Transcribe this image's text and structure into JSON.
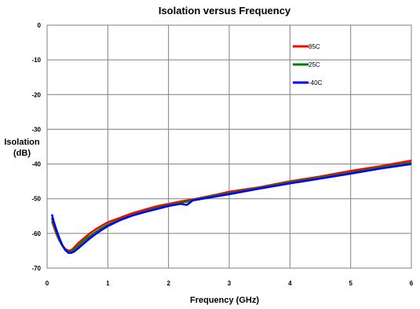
{
  "chart_data": {
    "type": "line",
    "title": "Isolation versus Frequency",
    "xlabel": "Frequency (GHz)",
    "ylabel_lines": [
      "Isolation",
      "(dB)"
    ],
    "xlim": [
      0,
      6
    ],
    "ylim": [
      -70,
      0
    ],
    "xticks": [
      0,
      1,
      2,
      3,
      4,
      5,
      6
    ],
    "yticks": [
      0,
      -10,
      -20,
      -30,
      -40,
      -50,
      -60,
      -70
    ],
    "grid": true,
    "legend_position": "top-right",
    "series": [
      {
        "name": "85C",
        "color": "#ff0000",
        "x": [
          0.08,
          0.1,
          0.15,
          0.2,
          0.25,
          0.3,
          0.35,
          0.4,
          0.45,
          0.5,
          0.6,
          0.7,
          0.8,
          0.9,
          1.0,
          1.2,
          1.4,
          1.6,
          1.8,
          2.0,
          2.2,
          2.3,
          2.4,
          2.6,
          2.8,
          3.0,
          3.5,
          4.0,
          4.5,
          5.0,
          5.5,
          6.0
        ],
        "y": [
          -56.5,
          -57.5,
          -60.0,
          -62.0,
          -63.5,
          -64.5,
          -65.0,
          -64.8,
          -64.0,
          -63.0,
          -61.5,
          -60.0,
          -58.8,
          -57.8,
          -56.8,
          -55.5,
          -54.2,
          -53.2,
          -52.2,
          -51.5,
          -50.8,
          -50.5,
          -50.2,
          -49.5,
          -48.8,
          -48.0,
          -46.7,
          -45.0,
          -43.6,
          -42.0,
          -40.6,
          -39.0
        ]
      },
      {
        "name": "25C",
        "color": "#008000",
        "x": [
          0.08,
          0.1,
          0.15,
          0.2,
          0.25,
          0.3,
          0.35,
          0.4,
          0.45,
          0.5,
          0.6,
          0.7,
          0.8,
          0.9,
          1.0,
          1.2,
          1.4,
          1.6,
          1.8,
          2.0,
          2.2,
          2.3,
          2.4,
          2.6,
          2.8,
          3.0,
          3.5,
          4.0,
          4.5,
          5.0,
          5.5,
          6.0
        ],
        "y": [
          -55.5,
          -57.0,
          -59.5,
          -61.8,
          -63.5,
          -64.8,
          -65.3,
          -65.2,
          -64.6,
          -63.8,
          -62.2,
          -60.8,
          -59.6,
          -58.5,
          -57.5,
          -56.0,
          -54.8,
          -53.7,
          -52.7,
          -51.9,
          -51.2,
          -50.9,
          -50.4,
          -49.7,
          -49.0,
          -48.4,
          -46.9,
          -45.3,
          -43.9,
          -42.5,
          -41.0,
          -39.6
        ]
      },
      {
        "name": "-40C",
        "color": "#0000ff",
        "x": [
          0.08,
          0.1,
          0.15,
          0.2,
          0.25,
          0.3,
          0.35,
          0.4,
          0.45,
          0.5,
          0.6,
          0.7,
          0.8,
          0.9,
          1.0,
          1.2,
          1.4,
          1.6,
          1.8,
          2.0,
          2.2,
          2.3,
          2.35,
          2.4,
          2.6,
          2.8,
          3.0,
          3.5,
          4.0,
          4.5,
          5.0,
          5.5,
          6.0
        ],
        "y": [
          -54.5,
          -56.0,
          -58.8,
          -61.3,
          -63.3,
          -64.8,
          -65.6,
          -65.6,
          -65.2,
          -64.5,
          -63.0,
          -61.5,
          -60.2,
          -59.0,
          -57.9,
          -56.2,
          -54.9,
          -53.9,
          -53.0,
          -52.1,
          -51.5,
          -51.8,
          -51.2,
          -50.5,
          -49.9,
          -49.3,
          -48.7,
          -47.1,
          -45.6,
          -44.2,
          -42.8,
          -41.3,
          -40.0
        ]
      }
    ]
  }
}
